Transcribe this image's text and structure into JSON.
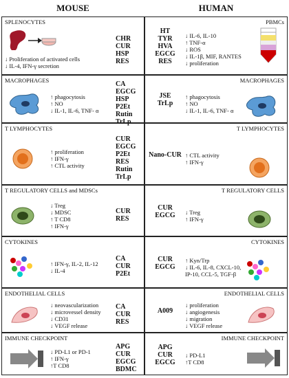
{
  "header": {
    "left": "MOUSE",
    "right": "HUMAN"
  },
  "rows": [
    {
      "mouse": {
        "title": "SPLENOCYTES",
        "effects": [
          "↓ Proliferation of activated cells",
          "↓ IL-4, IFN-γ secretion"
        ],
        "compounds": [
          "CHR",
          "CUR",
          "HSP",
          "RES"
        ]
      },
      "human": {
        "title": "PBMCs",
        "compounds": [
          "HT",
          "TYR",
          "HVA",
          "EGCG",
          "RES"
        ],
        "effects": [
          "↓ IL-6, IL-10",
          "↑ TNF-α",
          "↓ ROS",
          "↓ IL-1β, MIF, RANTES",
          "↓ proliferation"
        ]
      }
    },
    {
      "mouse": {
        "title": "MACROPHAGES",
        "effects": [
          "↑ phagocytosis",
          "↑ NO",
          "↓ IL-1, IL-6, TNF- α"
        ],
        "compounds": [
          "CA",
          "EGCG",
          "HSP",
          "P2Et",
          "Rutin",
          "TrLp"
        ]
      },
      "human": {
        "title": "MACROPHAGES",
        "compounds": [
          "JSE",
          "TrLp"
        ],
        "effects": [
          "↑ phagocytosis",
          "↑ NO",
          "↓ IL-1, IL-6, TNF- α"
        ]
      }
    },
    {
      "mouse": {
        "title": "T LYMPHOCYTES",
        "effects": [
          "↑ proliferation",
          "↑ IFN-γ",
          "↑ CTL activity"
        ],
        "compounds": [
          "CUR",
          "EGCG",
          "P2Et",
          "RES",
          "Rutin",
          "TrLp"
        ]
      },
      "human": {
        "title": "T LYMPHOCYTES",
        "compounds": [
          "Nano-CUR"
        ],
        "effects": [
          "↑ CTL activity",
          "↑ IFN-γ"
        ]
      }
    },
    {
      "mouse": {
        "title": "T REGULATORY CELLS and MDSCs",
        "effects": [
          "↓ Treg",
          "↓ MDSC",
          "↑ T CD8",
          "↑ IFN-γ"
        ],
        "compounds": [
          "CUR",
          "RES"
        ]
      },
      "human": {
        "title": "T REGULATORY CELLS",
        "compounds": [
          "CUR",
          "EGCG"
        ],
        "effects": [
          "↓ Treg",
          "↑ IFN-γ"
        ]
      }
    },
    {
      "mouse": {
        "title": "CYTOKINES",
        "effects": [
          "↑ IFN-γ, IL-2, IL-12",
          "↓ IL-4"
        ],
        "compounds": [
          "CA",
          "CUR",
          "P2Et"
        ]
      },
      "human": {
        "title": "CYTOKINES",
        "compounds": [
          "CUR",
          "EGCG"
        ],
        "effects": [
          "↑ Kyn/Trp",
          "↓ IL-6, IL-8, CXCL-10, IP-10, CCL-5, TGF-β"
        ]
      }
    },
    {
      "mouse": {
        "title": "ENDOTHELIAL CELLS",
        "effects": [
          "↓ neovascularization",
          "↓ microvessel density",
          "↓ CD31",
          "↓ VEGF release"
        ],
        "compounds": [
          "CA",
          "CUR",
          "RES"
        ]
      },
      "human": {
        "title": "ENDOTHELIAL CELLS",
        "compounds": [
          "A009"
        ],
        "effects": [
          "↓ proliferation",
          "↓ angiogenesis",
          "↓ migration",
          "↓ VEGF release"
        ]
      }
    },
    {
      "mouse": {
        "title": "IMMUNE CHECKPOINT",
        "effects": [
          "↓ PD-L1 or PD-1",
          "↑ IFN-γ",
          "↑T CD8"
        ],
        "compounds": [
          "APG",
          "CUR",
          "EGCG",
          "BDMC"
        ]
      },
      "human": {
        "title": "IMMUNE CHECKPOINT",
        "compounds": [
          "APG",
          "CUR",
          "EGCG"
        ],
        "effects": [
          "↓ PD-L1",
          "↑T CD8"
        ]
      }
    }
  ]
}
